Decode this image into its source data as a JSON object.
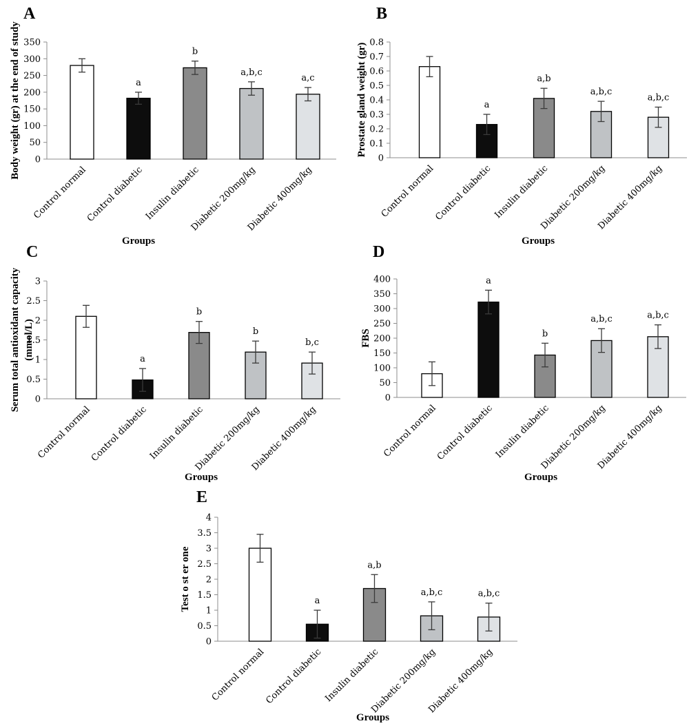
{
  "chart_data": [
    {
      "panel": "A",
      "type": "bar",
      "ylabel": "Body weight (gr) at the end of study",
      "xlabel": "Groups",
      "ylim": [
        0,
        350
      ],
      "yticks": [
        "350",
        "300",
        "250",
        "200",
        "150",
        "100",
        "50",
        "0"
      ],
      "categories": [
        "Control normal",
        "Control diabetic",
        "Insulin diabetic",
        "Diabetic 200mg/kg",
        "Diabetic 400mg/kg"
      ],
      "values": [
        280,
        182,
        273,
        211,
        194
      ],
      "errors": [
        20,
        18,
        20,
        20,
        20
      ],
      "labels": [
        "",
        "a",
        "b",
        "a,b,c",
        "a,c"
      ],
      "bar_colors": [
        "#ffffff",
        "#0d0d0d",
        "#8a8a8a",
        "#bfc2c5",
        "#dfe2e5"
      ]
    },
    {
      "panel": "B",
      "type": "bar",
      "ylabel": "Prostate gland weight (gr)",
      "xlabel": "Groups",
      "ylim": [
        0,
        0.8
      ],
      "yticks": [
        "0.8",
        "0.7",
        "0.6",
        "0.5",
        "0.4",
        "0.3",
        "0.2",
        "0.1",
        "0"
      ],
      "categories": [
        "Control normal",
        "Control diabetic",
        "Insulin diabetic",
        "Diabetic 200mg/kg",
        "Diabetic 400mg/kg"
      ],
      "values": [
        0.63,
        0.23,
        0.41,
        0.32,
        0.28
      ],
      "errors": [
        0.07,
        0.07,
        0.07,
        0.07,
        0.07
      ],
      "labels": [
        "",
        "a",
        "a,b",
        "a,b,c",
        "a,b,c"
      ],
      "bar_colors": [
        "#ffffff",
        "#0d0d0d",
        "#8a8a8a",
        "#bfc2c5",
        "#dfe2e5"
      ]
    },
    {
      "panel": "C",
      "type": "bar",
      "ylabel": "Serum total antioxidant capacity (mmol/L)",
      "xlabel": "Groups",
      "ylim": [
        0,
        3
      ],
      "yticks": [
        "3",
        "2.5",
        "2",
        "1.5",
        "1",
        "0.5",
        "0"
      ],
      "categories": [
        "Control normal",
        "Control diabetic",
        "Insulin diabetic",
        "Diabetic 200mg/kg",
        "Diabetic 400mg/kg"
      ],
      "values": [
        2.1,
        0.48,
        1.69,
        1.19,
        0.91
      ],
      "errors": [
        0.28,
        0.29,
        0.28,
        0.28,
        0.28
      ],
      "labels": [
        "",
        "a",
        "b",
        "b",
        "b,c"
      ],
      "bar_colors": [
        "#ffffff",
        "#0d0d0d",
        "#8a8a8a",
        "#bfc2c5",
        "#dfe2e5"
      ]
    },
    {
      "panel": "D",
      "type": "bar",
      "ylabel": "FBS",
      "xlabel": "Groups",
      "ylim": [
        0,
        400
      ],
      "yticks": [
        "400",
        "350",
        "300",
        "250",
        "200",
        "150",
        "100",
        "50",
        "0"
      ],
      "categories": [
        "Control normal",
        "Control diabetic",
        "Insulin diabetic",
        "Diabetic 200mg/kg",
        "Diabetic 400mg/kg"
      ],
      "values": [
        80,
        322,
        143,
        192,
        205
      ],
      "errors": [
        40,
        40,
        40,
        40,
        40
      ],
      "labels": [
        "",
        "a",
        "b",
        "a,b,c",
        "a,b,c"
      ],
      "bar_colors": [
        "#ffffff",
        "#0d0d0d",
        "#8a8a8a",
        "#bfc2c5",
        "#dfe2e5"
      ]
    },
    {
      "panel": "E",
      "type": "bar",
      "ylabel": "Test o st er one",
      "xlabel": "Groups",
      "ylim": [
        0,
        4
      ],
      "yticks": [
        "4",
        "3.5",
        "3",
        "2.5",
        "2",
        "1.5",
        "1",
        "0.5",
        "0"
      ],
      "categories": [
        "Control normal",
        "Control diabetic",
        "Insulin diabetic",
        "Diabetic 200mg/kg",
        "Diabetic 400mg/kg"
      ],
      "values": [
        3.0,
        0.55,
        1.7,
        0.82,
        0.78
      ],
      "errors": [
        0.45,
        0.45,
        0.45,
        0.45,
        0.45
      ],
      "labels": [
        "",
        "a",
        "a,b",
        "a,b,c",
        "a,b,c"
      ],
      "bar_colors": [
        "#ffffff",
        "#0d0d0d",
        "#8a8a8a",
        "#bfc2c5",
        "#dfe2e5"
      ]
    }
  ]
}
